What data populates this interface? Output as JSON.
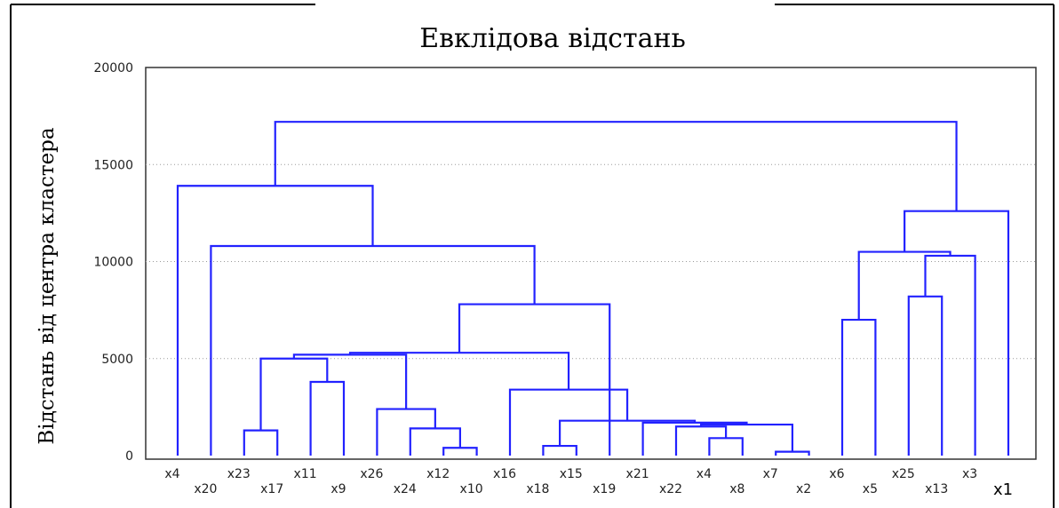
{
  "chart_data": {
    "type": "dendrogram",
    "title": "Евклідова відстань",
    "ylabel": "Відстань від центра кластера",
    "xlabel": "",
    "ylim": [
      0,
      20000
    ],
    "yticks": [
      0,
      5000,
      10000,
      15000,
      20000
    ],
    "grid": true,
    "line_color": "#2222ff",
    "leaves": [
      "x4",
      "x20",
      "x23",
      "x17",
      "x11",
      "x9",
      "x26",
      "x24",
      "x12",
      "x10",
      "x16",
      "x18",
      "x15",
      "x19",
      "x21",
      "x22",
      "x4",
      "x8",
      "x7",
      "x2",
      "x6",
      "x5",
      "x25",
      "x13",
      "x3",
      "x1"
    ],
    "merges": [
      {
        "id": "m1",
        "left": "L2",
        "right": "L3",
        "height": 1300
      },
      {
        "id": "m2",
        "left": "L4",
        "right": "L5",
        "height": 3800
      },
      {
        "id": "m3",
        "left": "m1",
        "right": "m2",
        "height": 5000
      },
      {
        "id": "m4",
        "left": "L8",
        "right": "L9",
        "height": 400
      },
      {
        "id": "m5",
        "left": "L7",
        "right": "m4",
        "height": 1400
      },
      {
        "id": "m6",
        "left": "L6",
        "right": "m5",
        "height": 2400
      },
      {
        "id": "m7",
        "left": "m3",
        "right": "m6",
        "height": 5200
      },
      {
        "id": "m8",
        "left": "L11",
        "right": "L12",
        "height": 500
      },
      {
        "id": "m9",
        "left": "L16",
        "right": "L17",
        "height": 900
      },
      {
        "id": "m10",
        "left": "L15",
        "right": "m9",
        "height": 1500
      },
      {
        "id": "m11",
        "left": "L18",
        "right": "L19",
        "height": 200
      },
      {
        "id": "m12",
        "left": "m10",
        "right": "m11",
        "height": 1600
      },
      {
        "id": "m13",
        "left": "L14",
        "right": "m12",
        "height": 1700
      },
      {
        "id": "m14",
        "left": "m8",
        "right": "m13",
        "height": 1800
      },
      {
        "id": "m15",
        "left": "L10",
        "right": "m14",
        "height": 3400
      },
      {
        "id": "m16",
        "left": "m7",
        "right": "m15",
        "height": 5300
      },
      {
        "id": "m17",
        "left": "m16",
        "right": "L13",
        "height": 7800
      },
      {
        "id": "m18",
        "left": "L1",
        "right": "m17",
        "height": 10800
      },
      {
        "id": "m19",
        "left": "L0",
        "right": "m18",
        "height": 13900
      },
      {
        "id": "m20",
        "left": "L20",
        "right": "L21",
        "height": 7000
      },
      {
        "id": "m21",
        "left": "L22",
        "right": "L23",
        "height": 8200
      },
      {
        "id": "m22",
        "left": "m21",
        "right": "L24",
        "height": 10300
      },
      {
        "id": "m23",
        "left": "m20",
        "right": "m22",
        "height": 10500
      },
      {
        "id": "m24",
        "left": "m23",
        "right": "L25",
        "height": 12600
      },
      {
        "id": "m25",
        "left": "m19",
        "right": "m24",
        "height": 17200
      }
    ]
  }
}
